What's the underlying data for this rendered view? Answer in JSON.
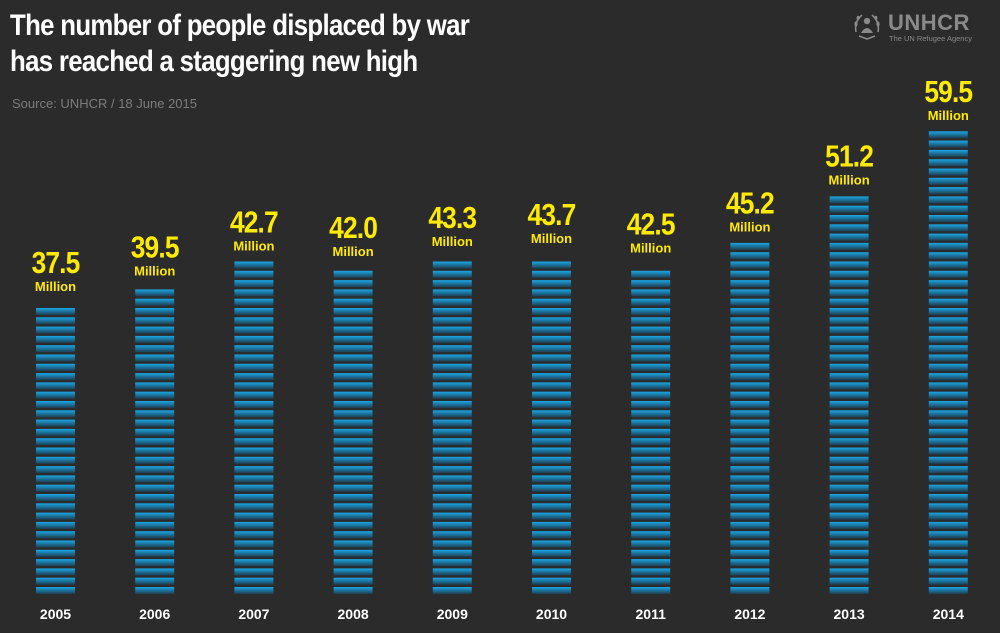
{
  "header": {
    "title_line1": "The number of people displaced by war",
    "title_line2": "has reached a staggering new high",
    "source": "Source: UNHCR / 18 June 2015"
  },
  "logo": {
    "name": "UNHCR",
    "tagline": "The UN Refugee Agency",
    "icon": "unhcr-emblem-icon"
  },
  "colors": {
    "background": "#2b2b2b",
    "bar_top": "#1aa7e6",
    "bar_bottom": "#1e3d50",
    "value_label": "#ffeb00",
    "axis_text": "#ffffff"
  },
  "chart_data": {
    "type": "bar",
    "categories": [
      "2005",
      "2006",
      "2007",
      "2008",
      "2009",
      "2010",
      "2011",
      "2012",
      "2013",
      "2014"
    ],
    "values": [
      37.5,
      39.5,
      42.7,
      42.0,
      43.3,
      43.7,
      42.5,
      45.2,
      51.2,
      59.5
    ],
    "value_labels": [
      "37.5",
      "39.5",
      "42.7",
      "42.0",
      "43.3",
      "43.7",
      "42.5",
      "45.2",
      "51.2",
      "59.5"
    ],
    "unit_label": "Million",
    "ylim": [
      0,
      59.5
    ],
    "grid": false
  }
}
